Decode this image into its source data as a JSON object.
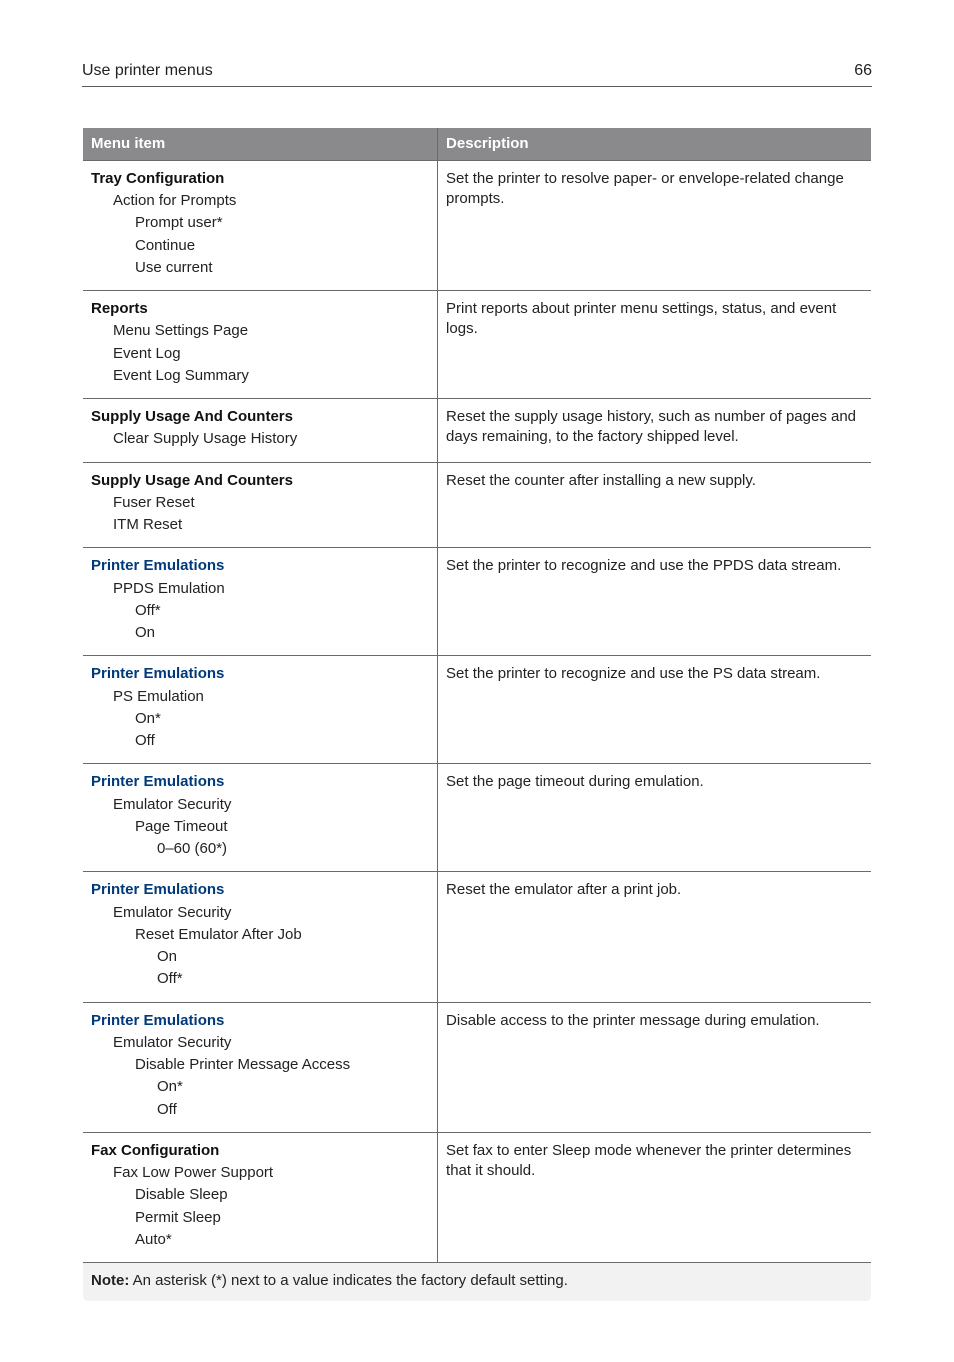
{
  "header": {
    "title": "Use printer menus",
    "page_number": "66"
  },
  "colors": {
    "header_bg": "#8a8a8c",
    "header_text": "#ffffff",
    "border": "#6a6a6a",
    "accent": "#003a7a",
    "note_bg": "#f2f2f2",
    "text": "#222222"
  },
  "table": {
    "columns": [
      "Menu item",
      "Description"
    ],
    "rows": [
      {
        "accent": false,
        "menu": [
          {
            "level": 0,
            "text": "Tray Configuration"
          },
          {
            "level": 1,
            "text": "Action for Prompts"
          },
          {
            "level": 2,
            "text": "Prompt user*"
          },
          {
            "level": 2,
            "text": "Continue"
          },
          {
            "level": 2,
            "text": "Use current"
          }
        ],
        "description": "Set the printer to resolve paper- or envelope-related change prompts."
      },
      {
        "accent": false,
        "menu": [
          {
            "level": 0,
            "text": "Reports"
          },
          {
            "level": 1,
            "text": "Menu Settings Page"
          },
          {
            "level": 1,
            "text": "Event Log"
          },
          {
            "level": 1,
            "text": "Event Log Summary"
          }
        ],
        "description": "Print reports about printer menu settings, status, and event logs."
      },
      {
        "accent": false,
        "menu": [
          {
            "level": 0,
            "text": "Supply Usage And Counters"
          },
          {
            "level": 1,
            "text": "Clear Supply Usage History"
          }
        ],
        "description": "Reset the supply usage history, such as number of pages and days remaining, to the factory shipped level."
      },
      {
        "accent": false,
        "menu": [
          {
            "level": 0,
            "text": "Supply Usage And Counters"
          },
          {
            "level": 1,
            "text": "Fuser Reset"
          },
          {
            "level": 1,
            "text": "ITM Reset"
          }
        ],
        "description": "Reset the counter after installing a new supply."
      },
      {
        "accent": true,
        "menu": [
          {
            "level": 0,
            "text": "Printer Emulations"
          },
          {
            "level": 1,
            "text": "PPDS Emulation"
          },
          {
            "level": 2,
            "text": "Off*"
          },
          {
            "level": 2,
            "text": "On"
          }
        ],
        "description": "Set the printer to recognize and use the PPDS data stream."
      },
      {
        "accent": true,
        "menu": [
          {
            "level": 0,
            "text": "Printer Emulations"
          },
          {
            "level": 1,
            "text": "PS Emulation"
          },
          {
            "level": 2,
            "text": "On*"
          },
          {
            "level": 2,
            "text": "Off"
          }
        ],
        "description": "Set the printer to recognize and use the PS data stream."
      },
      {
        "accent": true,
        "menu": [
          {
            "level": 0,
            "text": "Printer Emulations"
          },
          {
            "level": 1,
            "text": "Emulator Security"
          },
          {
            "level": 2,
            "text": "Page Timeout"
          },
          {
            "level": 3,
            "text": "0–60 (60*)"
          }
        ],
        "description": "Set the page timeout during emulation."
      },
      {
        "accent": true,
        "menu": [
          {
            "level": 0,
            "text": "Printer Emulations"
          },
          {
            "level": 1,
            "text": "Emulator Security"
          },
          {
            "level": 2,
            "text": "Reset Emulator After Job"
          },
          {
            "level": 3,
            "text": "On"
          },
          {
            "level": 3,
            "text": "Off*"
          }
        ],
        "description": "Reset the emulator after a print job."
      },
      {
        "accent": true,
        "menu": [
          {
            "level": 0,
            "text": "Printer Emulations"
          },
          {
            "level": 1,
            "text": "Emulator Security"
          },
          {
            "level": 2,
            "text": "Disable Printer Message Access"
          },
          {
            "level": 3,
            "text": "On*"
          },
          {
            "level": 3,
            "text": "Off"
          }
        ],
        "description": "Disable access to the printer message during emulation."
      },
      {
        "accent": false,
        "menu": [
          {
            "level": 0,
            "text": "Fax Configuration"
          },
          {
            "level": 1,
            "text": "Fax Low Power Support"
          },
          {
            "level": 2,
            "text": "Disable Sleep"
          },
          {
            "level": 2,
            "text": "Permit Sleep"
          },
          {
            "level": 2,
            "text": "Auto*"
          }
        ],
        "description": "Set fax to enter Sleep mode whenever the printer determines that it should."
      }
    ],
    "note": {
      "label": "Note:",
      "text": " An asterisk (*) next to a value indicates the factory default setting."
    }
  }
}
